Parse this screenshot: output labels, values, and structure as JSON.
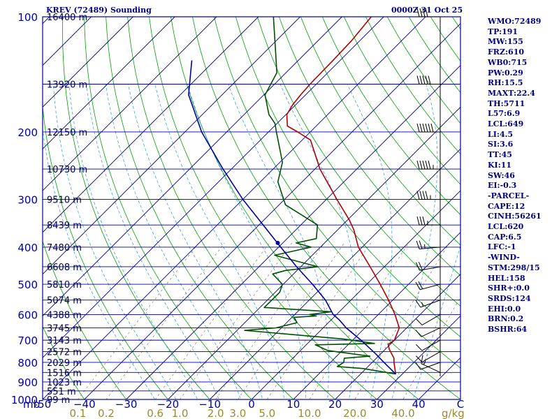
{
  "header": {
    "station": "KREV (72489) Sounding",
    "time": "0000Z 31 Oct 25"
  },
  "colors": {
    "frame": "#0000a0",
    "isotherm": "#000080",
    "dry_adiabat": "#00a000",
    "moist_adiabat": "#40a0e0",
    "mixing_ratio": "#808060",
    "temperature": "#b00000",
    "dewpoint": "#005000",
    "parcel": "#0000a0",
    "wind": "#000000",
    "stats_text": "#000080",
    "mixing_label": "#9a8a30"
  },
  "stats": [
    "WMO:72489",
    "TP:191",
    "MW:155",
    "FRZ:610",
    "WB0:715",
    "PW:0.29",
    "RH:15.5",
    "MAXT:22.4",
    "TH:5711",
    "L57:6.9",
    "LCL:649",
    "LI:4.5",
    "SI:3.6",
    "TT:45",
    "KI:11",
    "SW:46",
    "EI:-0.3",
    "-PARCEL-",
    "CAPE:12",
    "CINH:56261",
    "LCL:620",
    "CAP:6.5",
    "LFC:-1",
    "-WIND-",
    "STM:298/15",
    "HEL:158",
    "SHR+:0.0",
    "SRDS:124",
    "EHI:0.0",
    "BRN:0.2",
    "BSHR:64"
  ],
  "chart_data": {
    "type": "skew-t",
    "title": "KREV (72489) Sounding",
    "time": "0000Z 31 Oct 25",
    "pressure_range_mb": [
      1000,
      100
    ],
    "temperature_range_c": [
      -50,
      50
    ],
    "xlabel": "mb",
    "mixing_ratio_unit": "g/kg",
    "pressure_ticks": [
      100,
      200,
      300,
      400,
      500,
      600,
      700,
      800,
      900,
      1000
    ],
    "temperature_ticks": [
      -50,
      -40,
      -30,
      -20,
      -10,
      0,
      10,
      20,
      30,
      40
    ],
    "temperature_tick_labels": [
      "-50",
      "−40",
      "−30",
      "−20",
      "−10",
      "0",
      "10",
      "20",
      "30",
      "40"
    ],
    "right_corner_label": "C",
    "mixing_ratio_lines": [
      0.1,
      0.2,
      0.6,
      1.0,
      2.0,
      3.0,
      5.0,
      10.0,
      20.0,
      40.0
    ],
    "mixing_ratio_labels": [
      "0.1",
      "0.2",
      "0.6",
      "1.0",
      "2.0",
      "3.0",
      "5.0",
      "10.0",
      "20.0",
      "40.0"
    ],
    "height_labels": [
      {
        "p": 100,
        "label": "16400 m"
      },
      {
        "p": 150,
        "label": "13920 m"
      },
      {
        "p": 200,
        "label": "12150 m"
      },
      {
        "p": 250,
        "label": "10730 m"
      },
      {
        "p": 300,
        "label": "9510 m"
      },
      {
        "p": 350,
        "label": "8439 m"
      },
      {
        "p": 400,
        "label": "7480 m"
      },
      {
        "p": 450,
        "label": "6608 m"
      },
      {
        "p": 500,
        "label": "5810 m"
      },
      {
        "p": 550,
        "label": "5074 m"
      },
      {
        "p": 600,
        "label": "4388 m"
      },
      {
        "p": 650,
        "label": "3745 m"
      },
      {
        "p": 700,
        "label": "3143 m"
      },
      {
        "p": 750,
        "label": "2572 m"
      },
      {
        "p": 800,
        "label": "2029 m"
      },
      {
        "p": 850,
        "label": "1516 m"
      },
      {
        "p": 900,
        "label": "1023 m"
      },
      {
        "p": 950,
        "label": "551 m"
      },
      {
        "p": 1000,
        "label": "99 m"
      }
    ],
    "series": [
      {
        "name": "Temperature",
        "points": [
          [
            858,
            28.4
          ],
          [
            800,
            25.2
          ],
          [
            780,
            24.2
          ],
          [
            740,
            21.0
          ],
          [
            718,
            19.5
          ],
          [
            700,
            20.0
          ],
          [
            650,
            18.2
          ],
          [
            600,
            14.0
          ],
          [
            550,
            9.0
          ],
          [
            500,
            3.2
          ],
          [
            450,
            -3.4
          ],
          [
            400,
            -10.9
          ],
          [
            360,
            -16.2
          ],
          [
            340,
            -19.5
          ],
          [
            300,
            -27.5
          ],
          [
            250,
            -38.8
          ],
          [
            210,
            -48.0
          ],
          [
            200,
            -53.0
          ],
          [
            193,
            -56.9
          ],
          [
            180,
            -59.8
          ],
          [
            170,
            -60.7
          ],
          [
            160,
            -61.2
          ],
          [
            150,
            -61.5
          ],
          [
            130,
            -61.7
          ],
          [
            115,
            -62.0
          ],
          [
            100,
            -63.0
          ]
        ]
      },
      {
        "name": "Dewpoint",
        "points": [
          [
            858,
            28.4
          ],
          [
            830,
            19.2
          ],
          [
            820,
            12.6
          ],
          [
            800,
            13.2
          ],
          [
            780,
            12.3
          ],
          [
            771,
            18.0
          ],
          [
            745,
            6.5
          ],
          [
            720,
            2.2
          ],
          [
            714,
            16.0
          ],
          [
            695,
            7.5
          ],
          [
            660,
            -18.2
          ],
          [
            650,
            -11.3
          ],
          [
            630,
            -7.5
          ],
          [
            610,
            -9.5
          ],
          [
            605,
            -4.5
          ],
          [
            600,
            -6.5
          ],
          [
            590,
            -2.0
          ],
          [
            575,
            -19.0
          ],
          [
            525,
            -18.9
          ],
          [
            500,
            -20.2
          ],
          [
            470,
            -25.0
          ],
          [
            460,
            -22.7
          ],
          [
            450,
            -15.9
          ],
          [
            420,
            -29.0
          ],
          [
            400,
            -22.2
          ],
          [
            390,
            -26.8
          ],
          [
            380,
            -23.0
          ],
          [
            350,
            -26.0
          ],
          [
            310,
            -38.5
          ],
          [
            270,
            -45.8
          ],
          [
            240,
            -49.4
          ],
          [
            200,
            -58.1
          ],
          [
            190,
            -60.5
          ],
          [
            180,
            -64.1
          ],
          [
            160,
            -69.7
          ],
          [
            140,
            -72.2
          ],
          [
            120,
            -78.7
          ],
          [
            100,
            -86.4
          ]
        ]
      },
      {
        "name": "Parcel",
        "points": [
          [
            858,
            28.4
          ],
          [
            800,
            22.8
          ],
          [
            760,
            18.8
          ],
          [
            700,
            12.0
          ],
          [
            650,
            5.5
          ],
          [
            620,
            2.0
          ],
          [
            600,
            -0.8
          ],
          [
            550,
            -6.1
          ],
          [
            500,
            -13.0
          ],
          [
            450,
            -21.0
          ],
          [
            400,
            -29.5
          ],
          [
            350,
            -39.0
          ],
          [
            300,
            -50.0
          ],
          [
            250,
            -62.0
          ],
          [
            200,
            -76.0
          ],
          [
            160,
            -88.0
          ],
          [
            130,
            -95.5
          ]
        ]
      }
    ],
    "wind_barbs": [
      {
        "p": 850,
        "dir": 295,
        "spd": 15
      },
      {
        "p": 800,
        "dir": 250,
        "spd": 10
      },
      {
        "p": 750,
        "dir": 240,
        "spd": 10
      },
      {
        "p": 700,
        "dir": 240,
        "spd": 10
      },
      {
        "p": 650,
        "dir": 245,
        "spd": 10
      },
      {
        "p": 600,
        "dir": 240,
        "spd": 10
      },
      {
        "p": 550,
        "dir": 250,
        "spd": 15
      },
      {
        "p": 500,
        "dir": 255,
        "spd": 20
      },
      {
        "p": 450,
        "dir": 260,
        "spd": 20
      },
      {
        "p": 400,
        "dir": 265,
        "spd": 25
      },
      {
        "p": 350,
        "dir": 270,
        "spd": 35
      },
      {
        "p": 300,
        "dir": 270,
        "spd": 45
      },
      {
        "p": 250,
        "dir": 270,
        "spd": 55
      },
      {
        "p": 200,
        "dir": 270,
        "spd": 60
      },
      {
        "p": 150,
        "dir": 270,
        "spd": 50
      },
      {
        "p": 100,
        "dir": 270,
        "spd": 40
      }
    ]
  }
}
